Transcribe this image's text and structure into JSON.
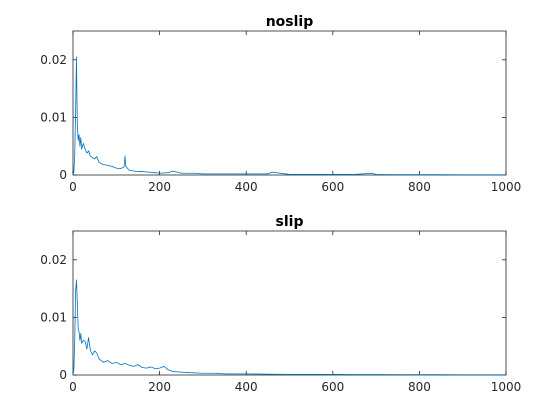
{
  "chart_data": [
    {
      "type": "line",
      "title": "noslip",
      "xlabel": "",
      "ylabel": "",
      "xlim": [
        0,
        1000
      ],
      "ylim": [
        0,
        0.025
      ],
      "xticks": [
        0,
        200,
        400,
        600,
        800,
        1000
      ],
      "xtick_labels": [
        "0",
        "200",
        "400",
        "600",
        "800",
        "1000"
      ],
      "yticks": [
        0,
        0.01,
        0.02
      ],
      "ytick_labels": [
        "0",
        "0.01",
        "0.02"
      ],
      "grid": false,
      "series": [
        {
          "name": "noslip",
          "color": "#0072BD",
          "x": [
            0,
            2,
            4,
            6,
            8,
            10,
            12,
            14,
            16,
            18,
            20,
            24,
            28,
            32,
            36,
            40,
            45,
            50,
            55,
            60,
            70,
            80,
            90,
            100,
            110,
            118,
            120,
            122,
            130,
            140,
            150,
            160,
            175,
            190,
            200,
            220,
            230,
            250,
            280,
            300,
            350,
            400,
            450,
            460,
            500,
            550,
            600,
            650,
            690,
            700,
            750,
            800,
            850,
            900,
            950,
            1000
          ],
          "y": [
            0,
            0.0005,
            0.0035,
            0.011,
            0.0205,
            0.0085,
            0.006,
            0.007,
            0.005,
            0.0065,
            0.0045,
            0.0055,
            0.0045,
            0.0038,
            0.0042,
            0.0033,
            0.003,
            0.0028,
            0.0032,
            0.0022,
            0.0018,
            0.0017,
            0.0015,
            0.0012,
            0.0011,
            0.0014,
            0.0033,
            0.0015,
            0.0008,
            0.0007,
            0.0006,
            0.0006,
            0.0005,
            0.0004,
            0.0003,
            0.0004,
            0.0007,
            0.0003,
            0.0003,
            0.0002,
            0.0002,
            0.0002,
            0.0002,
            0.0005,
            0.0001,
            0.0001,
            0.0001,
            0.0001,
            0.0003,
            0.0001,
            5e-05,
            5e-05,
            5e-05,
            4e-05,
            4e-05,
            3e-05
          ]
        }
      ]
    },
    {
      "type": "line",
      "title": "slip",
      "xlabel": "",
      "ylabel": "",
      "xlim": [
        0,
        1000
      ],
      "ylim": [
        0,
        0.025
      ],
      "xticks": [
        0,
        200,
        400,
        600,
        800,
        1000
      ],
      "xtick_labels": [
        "0",
        "200",
        "400",
        "600",
        "800",
        "1000"
      ],
      "yticks": [
        0,
        0.01,
        0.02
      ],
      "ytick_labels": [
        "0",
        "0.01",
        "0.02"
      ],
      "grid": false,
      "series": [
        {
          "name": "slip",
          "color": "#0072BD",
          "x": [
            0,
            2,
            4,
            6,
            8,
            10,
            12,
            14,
            16,
            18,
            20,
            24,
            28,
            32,
            36,
            40,
            45,
            50,
            55,
            60,
            70,
            80,
            90,
            100,
            110,
            120,
            130,
            140,
            150,
            160,
            170,
            180,
            190,
            200,
            210,
            220,
            230,
            250,
            270,
            300,
            330,
            350,
            400,
            450,
            500,
            550,
            600,
            650,
            700,
            750,
            800,
            850,
            900,
            950,
            1000
          ],
          "y": [
            0,
            0.001,
            0.006,
            0.0145,
            0.0165,
            0.0125,
            0.008,
            0.0075,
            0.006,
            0.0072,
            0.0055,
            0.006,
            0.0058,
            0.0045,
            0.0065,
            0.0043,
            0.0035,
            0.0042,
            0.0038,
            0.0028,
            0.0022,
            0.0025,
            0.002,
            0.0022,
            0.0018,
            0.002,
            0.0017,
            0.0015,
            0.0018,
            0.0013,
            0.0012,
            0.0014,
            0.0011,
            0.0012,
            0.0015,
            0.0009,
            0.0006,
            0.0005,
            0.0004,
            0.0003,
            0.0003,
            0.0002,
            0.0002,
            0.00015,
            0.0001,
            0.0001,
            0.0001,
            8e-05,
            8e-05,
            6e-05,
            5e-05,
            5e-05,
            4e-05,
            4e-05,
            3e-05
          ]
        }
      ]
    }
  ]
}
